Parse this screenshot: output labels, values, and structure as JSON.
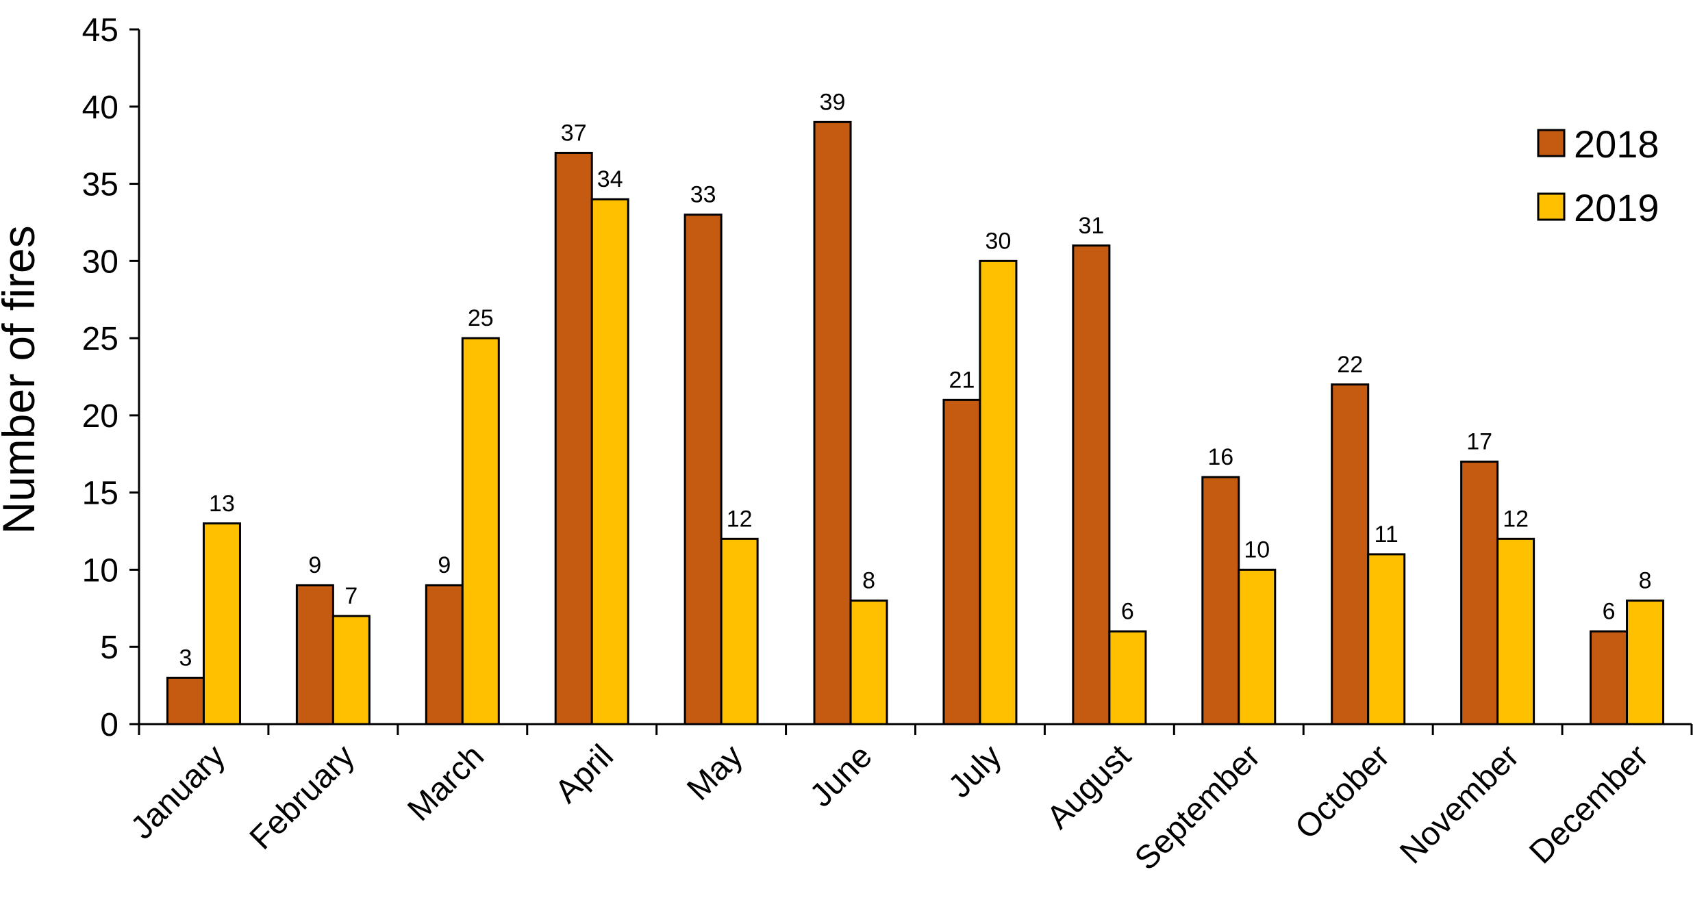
{
  "chart_data": {
    "type": "bar",
    "title": "",
    "xlabel": "",
    "ylabel": "Number of fires",
    "ylim": [
      0,
      45
    ],
    "yticks": [
      0,
      5,
      10,
      15,
      20,
      25,
      30,
      35,
      40,
      45
    ],
    "categories": [
      "January",
      "February",
      "March",
      "April",
      "May",
      "June",
      "July",
      "August",
      "September",
      "October",
      "November",
      "December"
    ],
    "series": [
      {
        "name": "2018",
        "color": "#C55A11",
        "values": [
          3,
          9,
          9,
          37,
          33,
          39,
          21,
          31,
          16,
          22,
          17,
          6
        ]
      },
      {
        "name": "2019",
        "color": "#FFC000",
        "values": [
          13,
          7,
          25,
          34,
          12,
          8,
          30,
          6,
          10,
          11,
          12,
          8
        ]
      }
    ],
    "data_labels": true,
    "grid": false,
    "legend_position": "top-right"
  }
}
